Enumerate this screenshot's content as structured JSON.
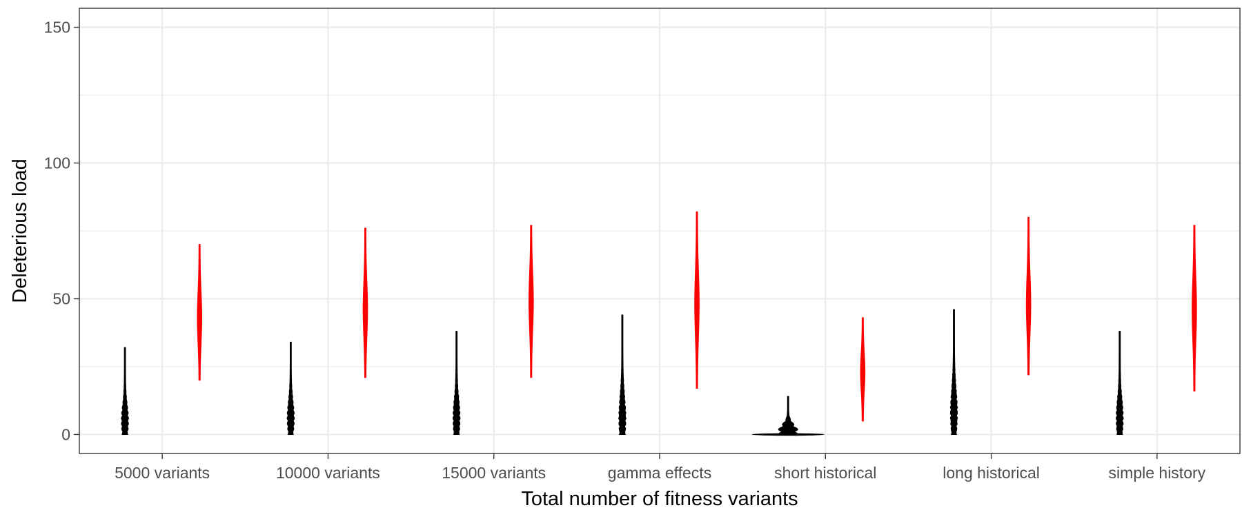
{
  "chart_data": {
    "type": "violin",
    "title": "",
    "xlabel": "Total number of fitness variants",
    "ylabel": "Deleterious load",
    "ylim": [
      -7,
      157
    ],
    "yticks": [
      0,
      50,
      100,
      150
    ],
    "grid": true,
    "legend": "none",
    "categories": [
      "5000 variants",
      "10000 variants",
      "15000 variants",
      "gamma effects",
      "short historical",
      "long historical",
      "simple history"
    ],
    "series": [
      {
        "color": "#000000",
        "ranges": [
          [
            0,
            32
          ],
          [
            0,
            34
          ],
          [
            0,
            38
          ],
          [
            0,
            44
          ],
          [
            0,
            14
          ],
          [
            0,
            46
          ],
          [
            0,
            38
          ]
        ],
        "centers": [
          5,
          6,
          6,
          6,
          1,
          8,
          6
        ]
      },
      {
        "color": "#ff0000",
        "ranges": [
          [
            20,
            70
          ],
          [
            21,
            76
          ],
          [
            21,
            77
          ],
          [
            17,
            82
          ],
          [
            5,
            43
          ],
          [
            22,
            80
          ],
          [
            16,
            77
          ]
        ],
        "centers": [
          43,
          46,
          49,
          48,
          23,
          48,
          46
        ]
      }
    ]
  }
}
